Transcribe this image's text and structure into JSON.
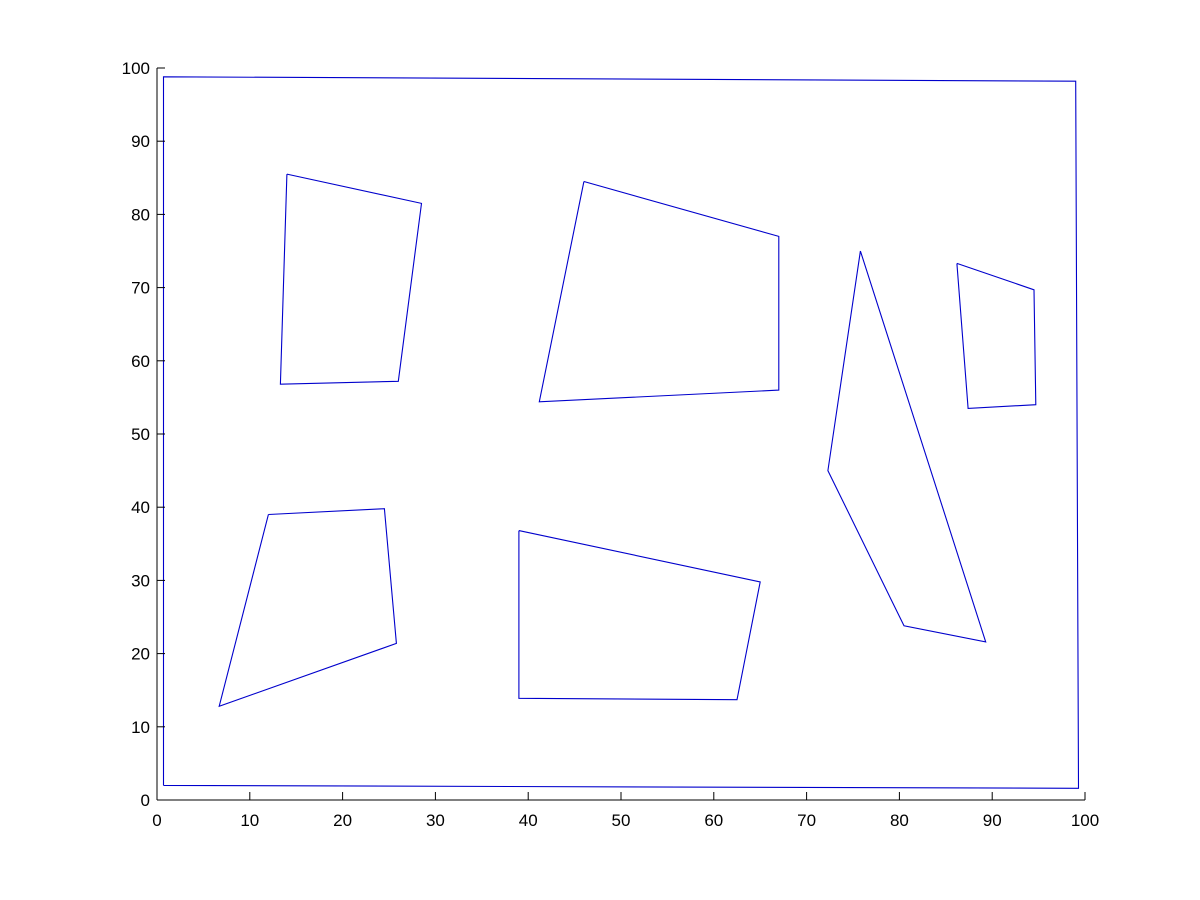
{
  "chart_data": {
    "type": "line",
    "title": "",
    "xlabel": "",
    "ylabel": "",
    "xlim": [
      0,
      100
    ],
    "ylim": [
      0,
      100
    ],
    "x_ticks": [
      "0",
      "10",
      "20",
      "30",
      "40",
      "50",
      "60",
      "70",
      "80",
      "90",
      "100"
    ],
    "y_ticks": [
      "0",
      "10",
      "20",
      "30",
      "40",
      "50",
      "60",
      "70",
      "80",
      "90",
      "100"
    ],
    "grid": false,
    "legend": "none",
    "line_color": "#0000cc",
    "series": [
      {
        "points": [
          [
            0.7,
            2
          ],
          [
            0.7,
            98.8
          ],
          [
            99,
            98.2
          ],
          [
            99.3,
            1.6
          ],
          [
            0.7,
            2
          ]
        ]
      },
      {
        "points": [
          [
            14,
            85.5
          ],
          [
            28.5,
            81.5
          ],
          [
            26,
            57.2
          ],
          [
            13.3,
            56.8
          ],
          [
            14,
            85.5
          ]
        ]
      },
      {
        "points": [
          [
            46,
            84.5
          ],
          [
            67,
            77
          ],
          [
            67,
            56
          ],
          [
            41.2,
            54.4
          ],
          [
            46,
            84.5
          ]
        ]
      },
      {
        "points": [
          [
            75.8,
            75
          ],
          [
            89.3,
            21.6
          ],
          [
            80.5,
            23.8
          ],
          [
            72.3,
            45
          ],
          [
            75.8,
            75
          ]
        ]
      },
      {
        "points": [
          [
            86.2,
            73.3
          ],
          [
            94.5,
            69.7
          ],
          [
            94.7,
            54
          ],
          [
            87.4,
            53.5
          ],
          [
            86.2,
            73.3
          ]
        ]
      },
      {
        "points": [
          [
            12,
            39
          ],
          [
            24.5,
            39.8
          ],
          [
            25.8,
            21.4
          ],
          [
            6.7,
            12.8
          ],
          [
            12,
            39
          ]
        ]
      },
      {
        "points": [
          [
            39,
            36.8
          ],
          [
            65,
            29.8
          ],
          [
            62.5,
            13.7
          ],
          [
            39,
            13.9
          ],
          [
            39,
            36.8
          ]
        ]
      }
    ]
  }
}
